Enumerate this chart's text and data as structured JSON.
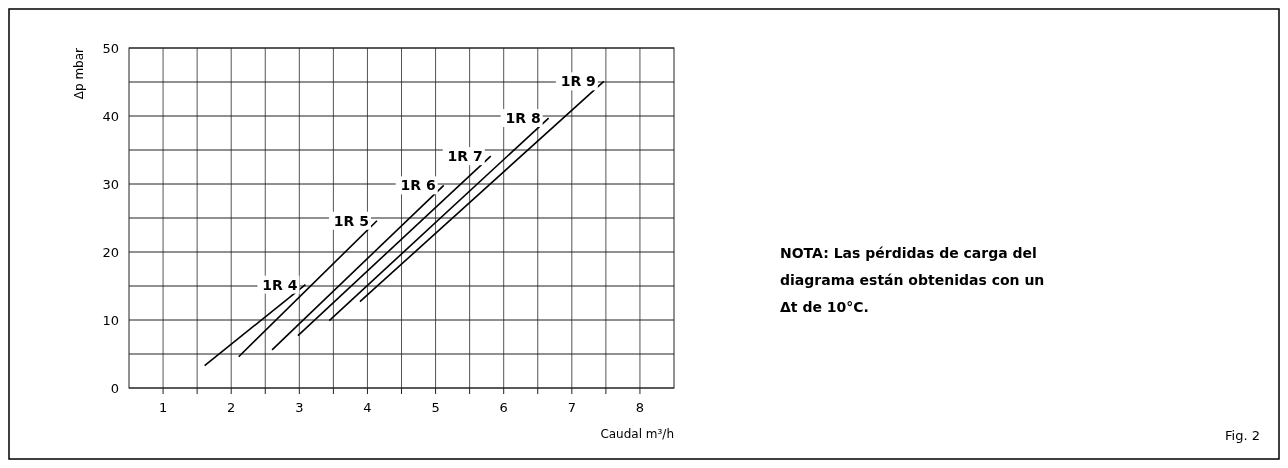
{
  "chart_data": {
    "type": "line",
    "xlabel": "Caudal m³/h",
    "ylabel": "Δp mbar",
    "xlim": [
      0.5,
      8.5
    ],
    "ylim": [
      0,
      50
    ],
    "xticks": [
      {
        "value": 1,
        "label": "1"
      },
      {
        "value": 1.5,
        "label": null
      },
      2,
      {
        "value": 2.5,
        "label": null
      },
      3,
      {
        "value": 3.5,
        "label": null
      },
      4,
      {
        "value": 4.5,
        "label": null
      },
      5,
      {
        "value": 5.5,
        "label": null
      },
      6,
      {
        "value": 6.5,
        "label": null
      },
      7,
      {
        "value": 7.5,
        "label": null
      },
      8
    ],
    "yticks": [
      0,
      {
        "value": 5,
        "label": null
      },
      10,
      {
        "value": 15,
        "label": null
      },
      20,
      {
        "value": 25,
        "label": null
      },
      30,
      {
        "value": 35,
        "label": null
      },
      40,
      {
        "value": 45,
        "label": null
      },
      50
    ],
    "grid": true,
    "marker": "none",
    "line_style": "solid",
    "series": [
      {
        "name": "1R 4",
        "color": "#000000",
        "x": [
          1.61,
          3.09
        ],
        "values": [
          3.3,
          15.2
        ]
      },
      {
        "name": "1R 5",
        "color": "#000000",
        "x": [
          2.11,
          4.14
        ],
        "values": [
          4.6,
          24.6
        ]
      },
      {
        "name": "1R 6",
        "color": "#000000",
        "x": [
          2.6,
          5.12
        ],
        "values": [
          5.6,
          29.8
        ]
      },
      {
        "name": "1R 7",
        "color": "#000000",
        "x": [
          2.98,
          5.81
        ],
        "values": [
          7.7,
          34.1
        ]
      },
      {
        "name": "1R 8",
        "color": "#000000",
        "x": [
          3.44,
          6.66
        ],
        "values": [
          9.9,
          39.7
        ]
      },
      {
        "name": "1R 9",
        "color": "#000000",
        "x": [
          3.89,
          7.47
        ],
        "values": [
          12.7,
          45.1
        ]
      }
    ],
    "annotations": [
      "NOTA: Las pérdidas de carga del diagrama están obtenidas con un Δt de 10°C.",
      "Fig. 2"
    ]
  }
}
